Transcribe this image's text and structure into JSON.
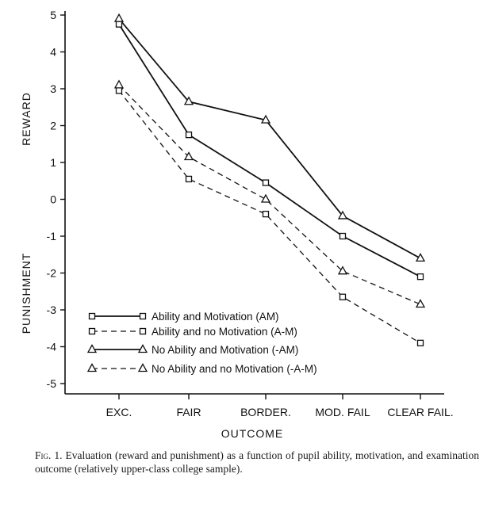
{
  "chart_data": {
    "type": "line",
    "categories": [
      "EXC.",
      "FAIR",
      "BORDER.",
      "MOD. FAIL",
      "CLEAR FAIL."
    ],
    "xlabel": "OUTCOME",
    "ylabel_upper": "REWARD",
    "ylabel_lower": "PUNISHMENT",
    "ylim": [
      -5,
      5
    ],
    "yticks": [
      5,
      4,
      3,
      2,
      1,
      0,
      -1,
      -2,
      -3,
      -4,
      -5
    ],
    "ytick_labels": [
      "5",
      "4",
      "3",
      "2",
      "1",
      "0",
      "-1",
      "-2",
      "-3",
      "-4",
      "-5"
    ],
    "grid": false,
    "legend_position": "bottom-left",
    "series": [
      {
        "name": "Ability and Motivation (AM)",
        "marker": "square",
        "line": "solid",
        "values": [
          4.75,
          1.75,
          0.45,
          -1.0,
          -2.1
        ]
      },
      {
        "name": "Ability and no Motivation (A-M)",
        "marker": "square",
        "line": "dashed",
        "values": [
          2.95,
          0.55,
          -0.4,
          -2.65,
          -3.9
        ]
      },
      {
        "name": "No Ability and Motivation (-AM)",
        "marker": "triangle",
        "line": "solid",
        "values": [
          4.9,
          2.65,
          2.15,
          -0.45,
          -1.6
        ]
      },
      {
        "name": "No Ability and no Motivation (-A-M)",
        "marker": "triangle",
        "line": "dashed",
        "values": [
          3.1,
          1.15,
          0.0,
          -1.95,
          -2.85
        ]
      }
    ]
  },
  "caption": {
    "label": "Fig. 1.",
    "text": "Evaluation (reward and punishment) as a function of pupil ability, motivation, and examination outcome (relatively upper-class college sample)."
  }
}
